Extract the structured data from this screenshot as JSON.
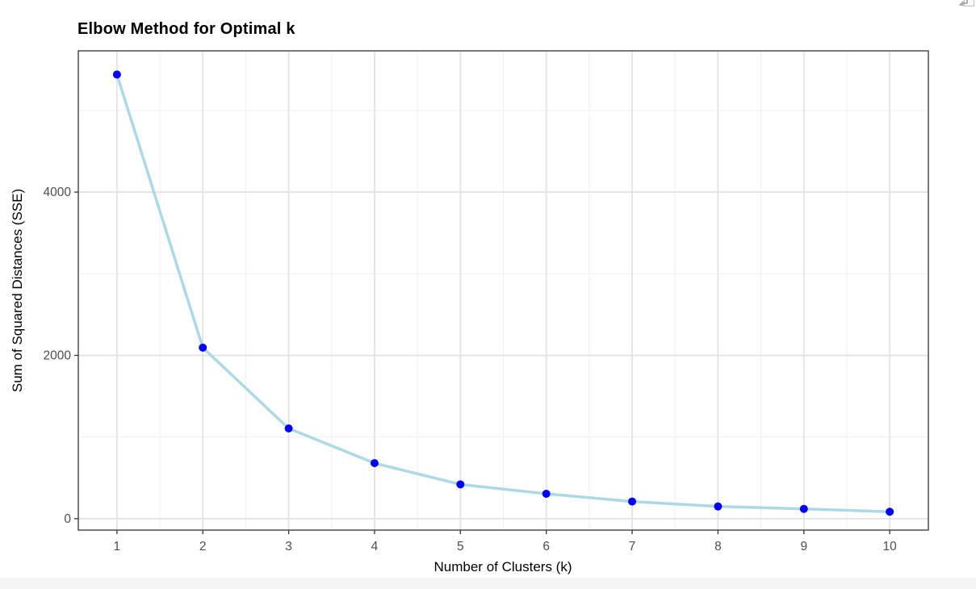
{
  "chart_data": {
    "type": "line",
    "title": "Elbow Method for Optimal k",
    "xlabel": "Number of Clusters (k)",
    "ylabel": "Sum of Squared Distances (SSE)",
    "series_name": "SSE",
    "x": [
      1,
      2,
      3,
      4,
      5,
      6,
      7,
      8,
      9,
      10
    ],
    "values": [
      5440,
      2095,
      1105,
      680,
      420,
      305,
      210,
      150,
      120,
      85
    ],
    "x_ticks": [
      "1",
      "2",
      "3",
      "4",
      "5",
      "6",
      "7",
      "8",
      "9",
      "10"
    ],
    "y_ticks": [
      "0",
      "2000",
      "4000"
    ],
    "y_tick_values": [
      0,
      2000,
      4000
    ],
    "y_minor_values": [
      1000,
      3000,
      5000
    ],
    "xlim": [
      0.55,
      10.45
    ],
    "ylim": [
      -140,
      5730
    ],
    "grid": true,
    "legend": false,
    "colors": {
      "line": "#ADD8E6",
      "point": "#0202F0",
      "grid_major": "#E3E3E3",
      "grid_minor": "#EFEFEF",
      "panel_border": "#333333",
      "tick_label": "#4D4D4D",
      "panel_bg": "#FFFFFF"
    }
  },
  "toolbar": {
    "export_icon": "open-in-new-window"
  }
}
